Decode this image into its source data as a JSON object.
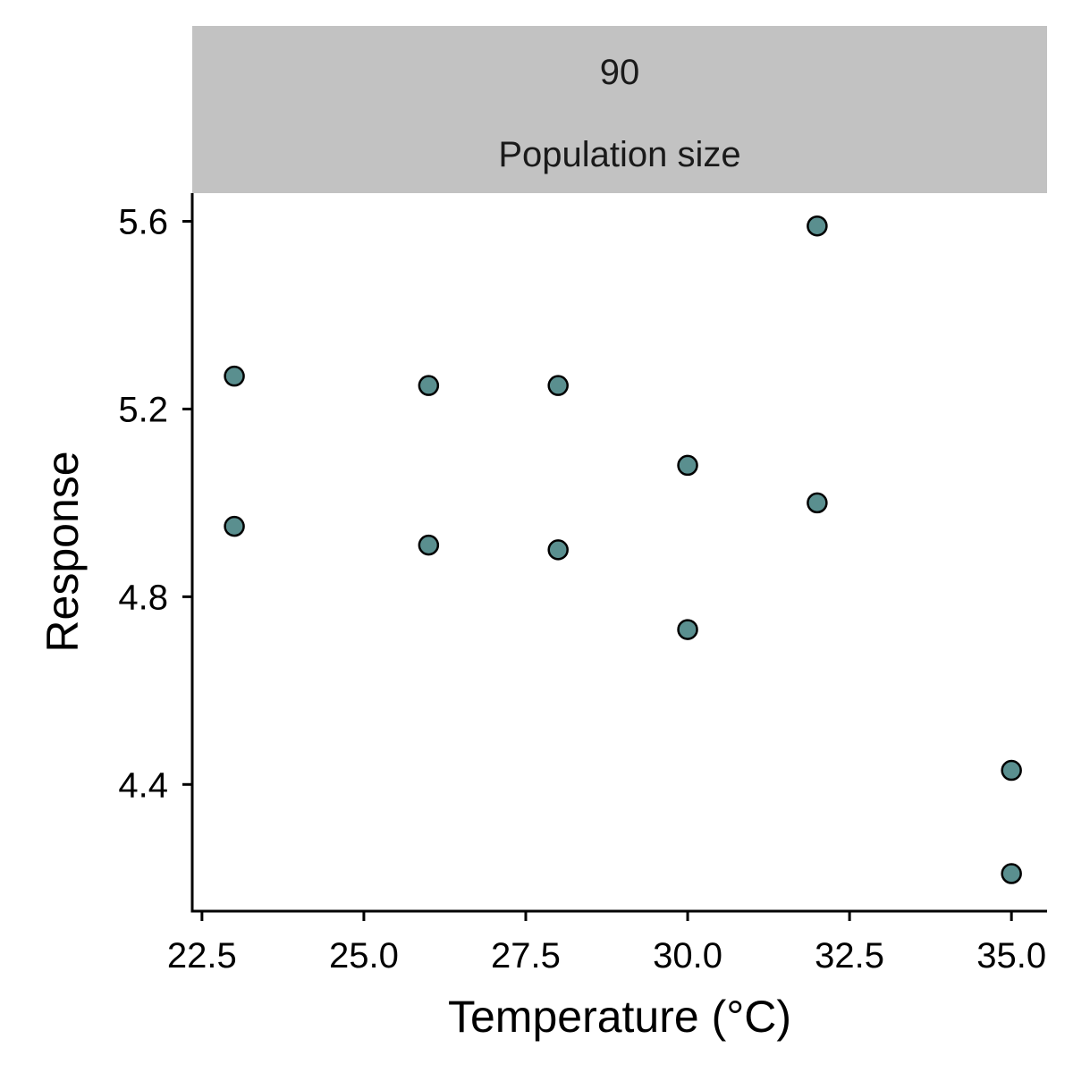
{
  "chart_data": {
    "type": "scatter",
    "title": "",
    "facet": {
      "value": "90",
      "label": "Population size"
    },
    "xlabel": "Temperature (°C)",
    "ylabel": "Response",
    "xlim": [
      22.35,
      35.55
    ],
    "ylim": [
      4.13,
      5.66
    ],
    "xticks": [
      22.5,
      25.0,
      27.5,
      30.0,
      32.5,
      35.0
    ],
    "xtick_labels": [
      "22.5",
      "25.0",
      "27.5",
      "30.0",
      "32.5",
      "35.0"
    ],
    "yticks": [
      4.4,
      4.8,
      5.2,
      5.6
    ],
    "ytick_labels": [
      "4.4",
      "4.8",
      "5.2",
      "5.6"
    ],
    "grid": false,
    "legend": "none",
    "series": [
      {
        "x": [
          23,
          23,
          26,
          26,
          28,
          28,
          30,
          30,
          32,
          32,
          35,
          35
        ],
        "y": [
          5.27,
          4.95,
          5.25,
          4.91,
          5.25,
          4.9,
          5.08,
          4.73,
          5.59,
          5.0,
          4.43,
          4.21
        ]
      }
    ],
    "colors": {
      "point_fill": "#5a8f8f",
      "point_stroke": "#000000",
      "strip_fill": "#c2c2c2",
      "axis": "#000000"
    }
  }
}
